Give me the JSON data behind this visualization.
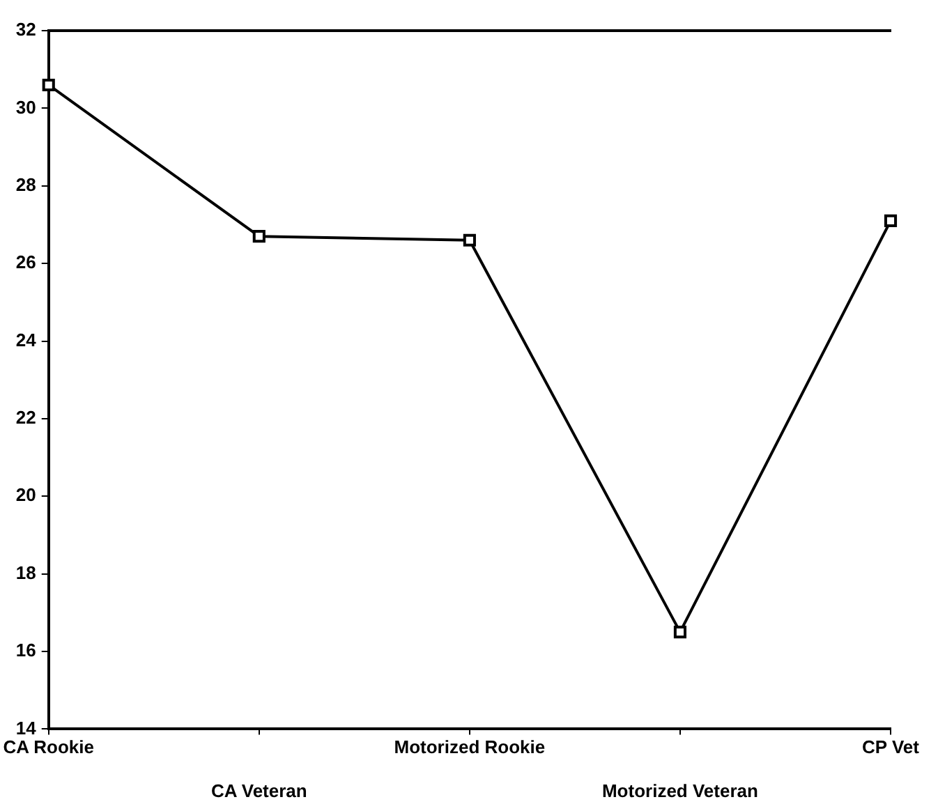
{
  "chart_data": {
    "type": "line",
    "categories": [
      "CA Rookie",
      "CA Veteran",
      "Motorized Rookie",
      "Motorized Veteran",
      "CP Vet"
    ],
    "values": [
      30.6,
      26.7,
      26.6,
      16.5,
      27.1
    ],
    "color": "#000000",
    "marker": "square",
    "ylim": [
      14,
      32
    ],
    "yticks": [
      14,
      16,
      18,
      20,
      22,
      24,
      26,
      28,
      30,
      32
    ]
  }
}
